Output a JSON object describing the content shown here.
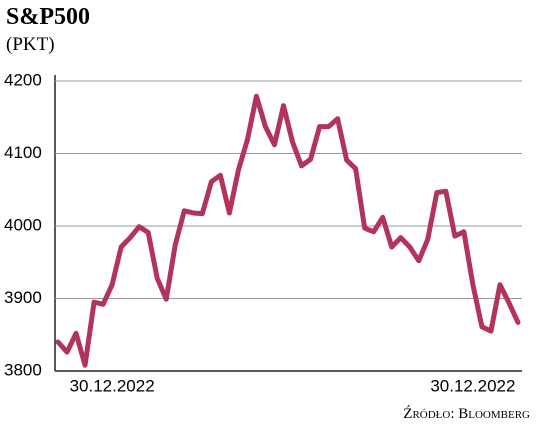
{
  "chart_data": {
    "type": "line",
    "title": "S&P500",
    "subtitle": "(PKT)",
    "source": "Źródło: Bloomberg",
    "categories": [
      null,
      null,
      null,
      null,
      null,
      null,
      "30.12.2022",
      null,
      null,
      null,
      null,
      null,
      null,
      null,
      null,
      null,
      null,
      null,
      null,
      null,
      null,
      null,
      null,
      null,
      null,
      null,
      null,
      null,
      null,
      null,
      null,
      null,
      null,
      null,
      null,
      null,
      null,
      null,
      null,
      null,
      null,
      null,
      null,
      null,
      null,
      null,
      "30.12.2022",
      null,
      null,
      null,
      null,
      null
    ],
    "series": [
      {
        "name": "S&P500",
        "color": "#b3345a",
        "values": [
          3840,
          3826,
          3852,
          3808,
          3895,
          3892,
          3919,
          3971,
          3984,
          3999,
          3991,
          3928,
          3899,
          3974,
          4021,
          4018,
          4017,
          4061,
          4070,
          4018,
          4077,
          4119,
          4179,
          4137,
          4112,
          4166,
          4116,
          4083,
          4092,
          4137,
          4137,
          4148,
          4091,
          4079,
          3997,
          3992,
          4012,
          3971,
          3984,
          3971,
          3952,
          3982,
          4046,
          4048,
          3986,
          3992,
          3919,
          3861,
          3855,
          3919,
          3894,
          3867
        ]
      }
    ],
    "ylim": [
      3800,
      4200
    ],
    "yticks": [
      3800,
      3900,
      4000,
      4100,
      4200
    ],
    "grid": true
  }
}
